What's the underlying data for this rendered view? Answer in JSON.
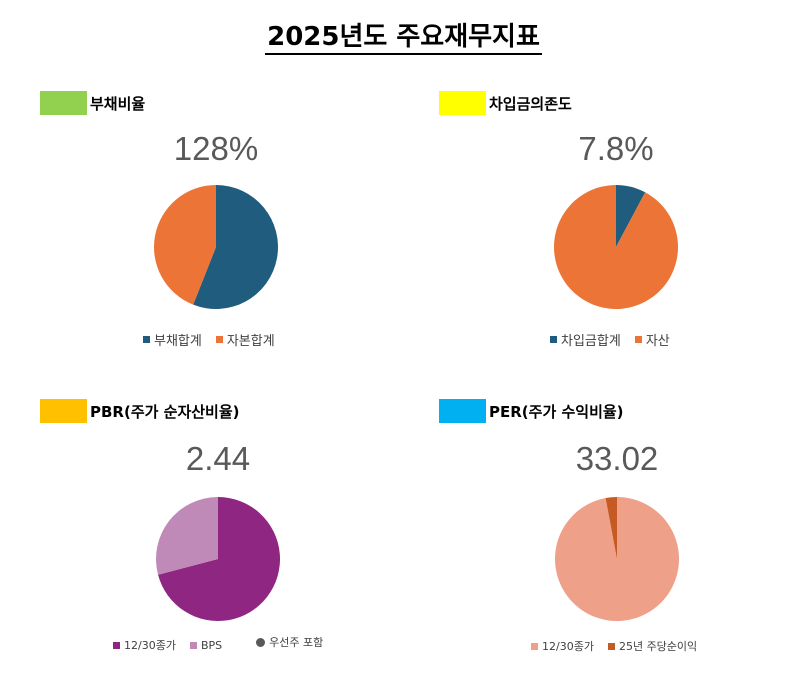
{
  "page": {
    "title": "2025년도 주요재무지표"
  },
  "chart_data": [
    {
      "type": "pie",
      "title": "부채비율",
      "title_swatch_color": "#92d050",
      "value_label": "128%",
      "slices": [
        {
          "label": "부채합계",
          "value": 56,
          "color": "#1f5c7d"
        },
        {
          "label": "자본합계",
          "value": 44,
          "color": "#ec7437"
        }
      ],
      "legend_position": "bottom",
      "extra_legend": null
    },
    {
      "type": "pie",
      "title": "차입금의존도",
      "title_swatch_color": "#ffff00",
      "value_label": "7.8%",
      "slices": [
        {
          "label": "차입금합계",
          "value": 7.8,
          "color": "#1f5c7d"
        },
        {
          "label": "자산",
          "value": 92.2,
          "color": "#ec7437"
        }
      ],
      "legend_position": "bottom",
      "extra_legend": null
    },
    {
      "type": "pie",
      "title": "PBR(주가 순자산비율)",
      "title_swatch_color": "#ffc000",
      "value_label": "2.44",
      "slices": [
        {
          "label": "12/30종가",
          "value": 70.9,
          "color": "#8e2682"
        },
        {
          "label": "BPS",
          "value": 29.1,
          "color": "#c08ab8"
        }
      ],
      "legend_position": "bottom",
      "extra_legend": {
        "label": "우선주 포함",
        "color": "#595959"
      }
    },
    {
      "type": "pie",
      "title": "PER(주가 수익비율)",
      "title_swatch_color": "#00b0f0",
      "value_label": "33.02",
      "slices": [
        {
          "label": "12/30종가",
          "value": 97.06,
          "color": "#eea089"
        },
        {
          "label": "25년 주당순이익",
          "value": 2.94,
          "color": "#c55a24"
        }
      ],
      "legend_position": "bottom",
      "extra_legend": null
    }
  ]
}
